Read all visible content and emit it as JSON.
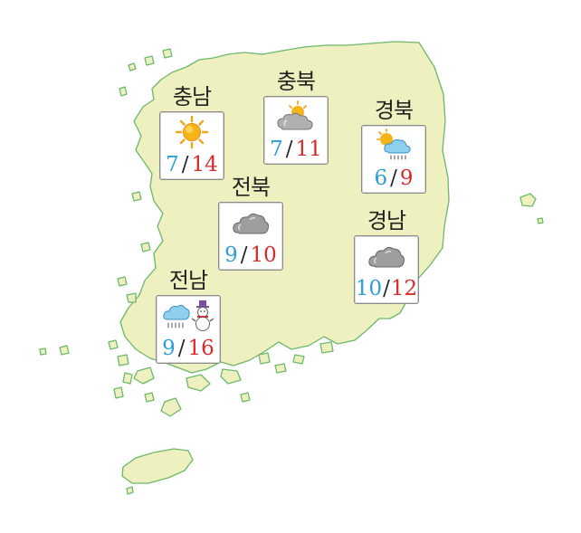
{
  "colors": {
    "land": "#eef0bf",
    "coast": "#6cb86a",
    "low": "#2a9fd8",
    "high": "#d72a2a"
  },
  "regions": [
    {
      "id": "chungnam",
      "name": "충남",
      "icons": [
        "sun-icon"
      ],
      "low": "7",
      "high": "14"
    },
    {
      "id": "chungbuk",
      "name": "충북",
      "icons": [
        "partly-cloudy-icon"
      ],
      "low": "7",
      "high": "11"
    },
    {
      "id": "gyeongbuk",
      "name": "경북",
      "icons": [
        "sun-rain-cloud-icon"
      ],
      "low": "6",
      "high": "9"
    },
    {
      "id": "jeonbuk",
      "name": "전북",
      "icons": [
        "cloud-icon"
      ],
      "low": "9",
      "high": "10"
    },
    {
      "id": "gyeongnam",
      "name": "경남",
      "icons": [
        "cloud-icon"
      ],
      "low": "10",
      "high": "12"
    },
    {
      "id": "jeonnam",
      "name": "전남",
      "icons": [
        "rain-cloud-icon",
        "snowman-icon"
      ],
      "low": "9",
      "high": "16"
    }
  ]
}
